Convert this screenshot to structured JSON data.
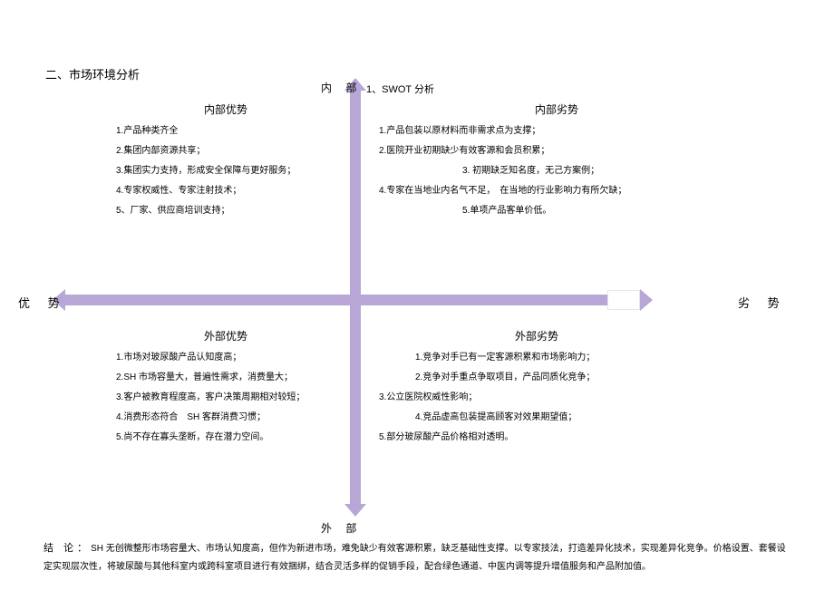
{
  "section_title": "二、市场环境分析",
  "axes": {
    "top_label": "内 部",
    "top_sub": "1、SWOT 分析",
    "left_label": "优 势",
    "right_label": "劣 势",
    "bottom_label": "外 部",
    "color": "#b7a6d6"
  },
  "quadrants": {
    "internal_strength": {
      "title": "内部优势",
      "items": [
        "1.产品种类齐全",
        "2.集团内部资源共享；",
        "3.集团实力支持，形成安全保障与更好服务；",
        "4.专家权威性、专家注射技术；",
        "5、厂家、供应商培训支持；"
      ]
    },
    "internal_weakness": {
      "title": "内部劣势",
      "items": [
        "1.产品包装以原材料而非需求点为支撑；",
        "2.医院开业初期缺少有效客源和会员积累；",
        "3. 初期缺乏知名度，无己方案例；",
        "4.专家在当地业内名气不足，　在当地的行业影响力有所欠缺；",
        "5.单项产品客单价低。"
      ]
    },
    "external_strength": {
      "title": "外部优势",
      "items": [
        "1.市场对玻尿酸产品认知度高；",
        "2.SH 市场容量大，普遍性需求，消费量大；",
        "3.客户被教育程度高，客户决策周期相对较短；",
        "4.消费形态符合　SH 客群消费习惯；",
        "5.尚不存在寡头垄断，存在潜力空间。"
      ]
    },
    "external_weakness": {
      "title": "外部劣势",
      "items": [
        "1.竞争对手已有一定客源积累和市场影响力；",
        "2.竞争对手重点争取项目，产品同质化竞争；",
        "3.公立医院权威性影响；",
        "4.竞品虚高包装提高顾客对效果期望值；",
        "5.部分玻尿酸产品价格相对透明。"
      ]
    }
  },
  "conclusion": {
    "lead": "结  论：",
    "body": "SH 无创微整形市场容量大、市场认知度高，但作为新进市场，难免缺少有效客源积累，缺乏基础性支撑。以专家技法，打造差异化技术，实现差异化竞争。价格设置、套餐设定实现层次性，将玻尿酸与其他科室内或跨科室项目进行有效捆绑，结合灵活多样的促销手段，配合绿色通道、中医内调等提升增值服务和产品附加值。"
  }
}
